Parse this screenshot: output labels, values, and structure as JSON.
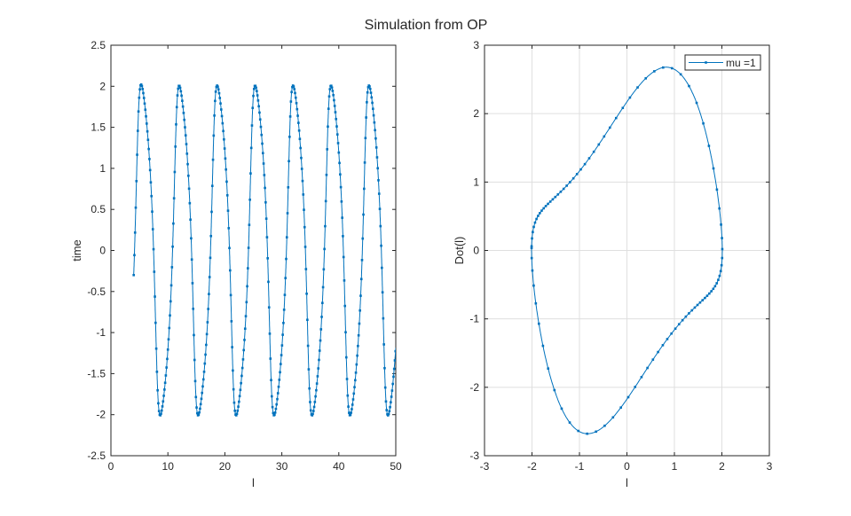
{
  "figure_title": "Simulation from OP",
  "colors": {
    "line": "#0072BD",
    "axes": "#262626",
    "grid": "#dfdfdf"
  },
  "chart_data": [
    {
      "type": "line",
      "title": "",
      "xlabel": "l",
      "ylabel": "time",
      "xlim": [
        0,
        50
      ],
      "ylim": [
        -2.5,
        2.5
      ],
      "xticks": [
        "0",
        "10",
        "20",
        "30",
        "40",
        "50"
      ],
      "yticks": [
        "-2.5",
        "-2",
        "-1.5",
        "-1",
        "-0.5",
        "0",
        "0.5",
        "1",
        "1.5",
        "2",
        "2.5"
      ],
      "grid": false,
      "marker": "point",
      "series": [
        {
          "t_range": [
            4,
            50
          ],
          "start_value": -0.3,
          "amplitude": 2.0,
          "period": 6.66
        }
      ]
    },
    {
      "type": "line",
      "title": "",
      "xlabel": "l",
      "ylabel": "Dot(l)",
      "xlim": [
        -3,
        3
      ],
      "ylim": [
        -3,
        3
      ],
      "xticks": [
        "-3",
        "-2",
        "-1",
        "0",
        "1",
        "2",
        "3"
      ],
      "yticks": [
        "-3",
        "-2",
        "-1",
        "0",
        "1",
        "2",
        "3"
      ],
      "grid": true,
      "legend": {
        "position": "top-right",
        "entries": [
          "mu =1"
        ]
      },
      "marker": "point",
      "series": [
        {
          "name": "mu =1",
          "x_range": [
            -2.0,
            2.0
          ],
          "y_range": [
            -2.67,
            2.67
          ]
        }
      ]
    }
  ]
}
